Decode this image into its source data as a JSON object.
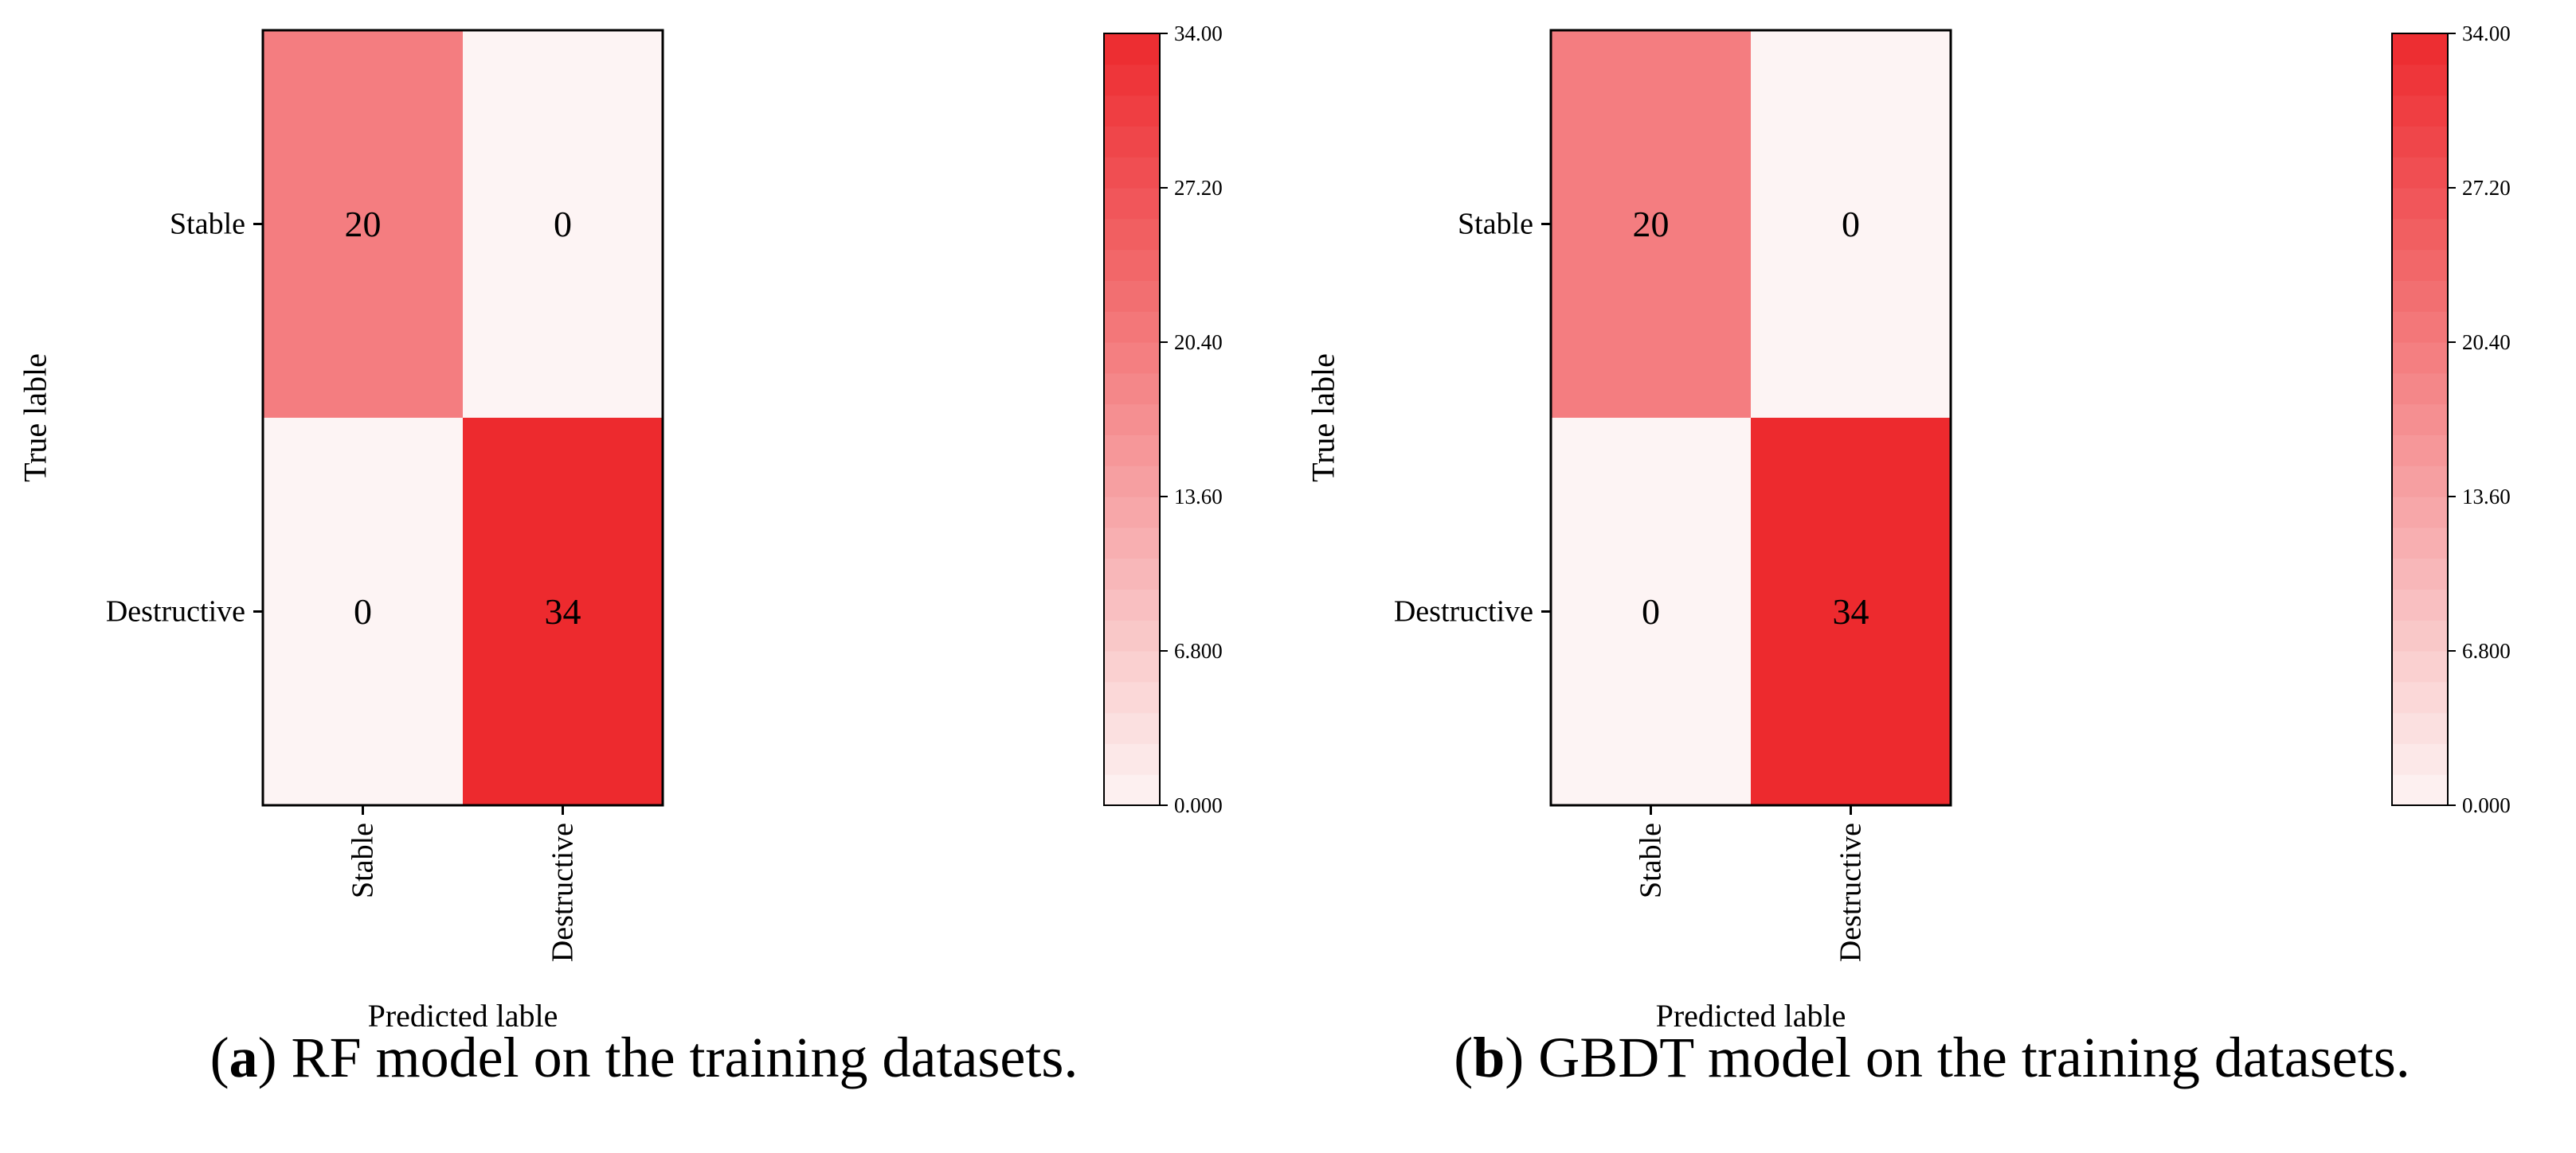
{
  "colors": {
    "low": "#fdf4f4",
    "high": "#ed2a2e",
    "frame": "#000000"
  },
  "chart_data": [
    {
      "type": "heatmap",
      "title": "",
      "xlabel": "Predicted lable",
      "ylabel": "True lable",
      "x_categories": [
        "Stable",
        "Destructive"
      ],
      "y_categories": [
        "Stable",
        "Destructive"
      ],
      "values": [
        [
          20,
          0
        ],
        [
          0,
          34
        ]
      ],
      "colorbar": {
        "min": 0,
        "max": 34,
        "ticks": [
          "0.000",
          "6.800",
          "13.60",
          "20.40",
          "27.20",
          "34.00"
        ],
        "levels": 25
      },
      "caption": {
        "letter": "a",
        "text": " RF model on the training datasets."
      }
    },
    {
      "type": "heatmap",
      "title": "",
      "xlabel": "Predicted lable",
      "ylabel": "True lable",
      "x_categories": [
        "Stable",
        "Destructive"
      ],
      "y_categories": [
        "Stable",
        "Destructive"
      ],
      "values": [
        [
          20,
          0
        ],
        [
          0,
          34
        ]
      ],
      "colorbar": {
        "min": 0,
        "max": 34,
        "ticks": [
          "0.000",
          "6.800",
          "13.60",
          "20.40",
          "27.20",
          "34.00"
        ],
        "levels": 25
      },
      "caption": {
        "letter": "b",
        "text": " GBDT model on the training datasets."
      }
    }
  ]
}
